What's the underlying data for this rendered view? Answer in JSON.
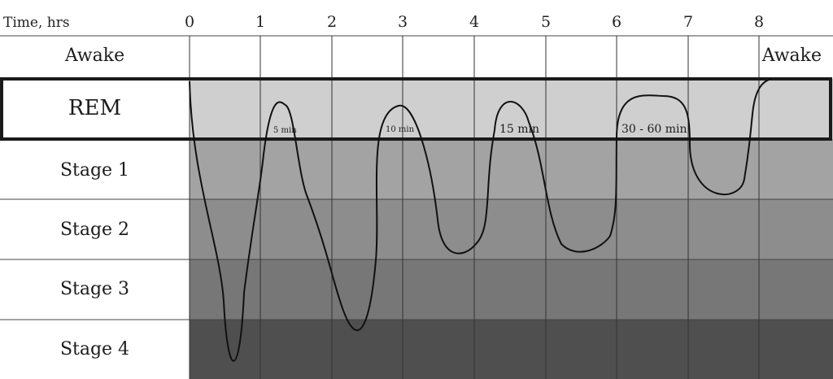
{
  "axis": {
    "title": "Time, hrs",
    "ticks": [
      "0",
      "1",
      "2",
      "3",
      "4",
      "5",
      "6",
      "7",
      "8"
    ]
  },
  "stages": [
    {
      "label": "Awake",
      "color": "#ffffff"
    },
    {
      "label": "REM",
      "color": "#cfcfcf"
    },
    {
      "label": "Stage 1",
      "color": "#a3a3a3"
    },
    {
      "label": "Stage 2",
      "color": "#8d8d8d"
    },
    {
      "label": "Stage 3",
      "color": "#777777"
    },
    {
      "label": "Stage 4",
      "color": "#4f4f4f"
    }
  ],
  "awake_end_label": "Awake",
  "rem_durations": [
    "5 min",
    "10 min",
    "15 min",
    "30 - 60 min"
  ],
  "colors": {
    "grid": "#333333",
    "curve": "#111111",
    "rem_border": "#1a1a1a"
  }
}
